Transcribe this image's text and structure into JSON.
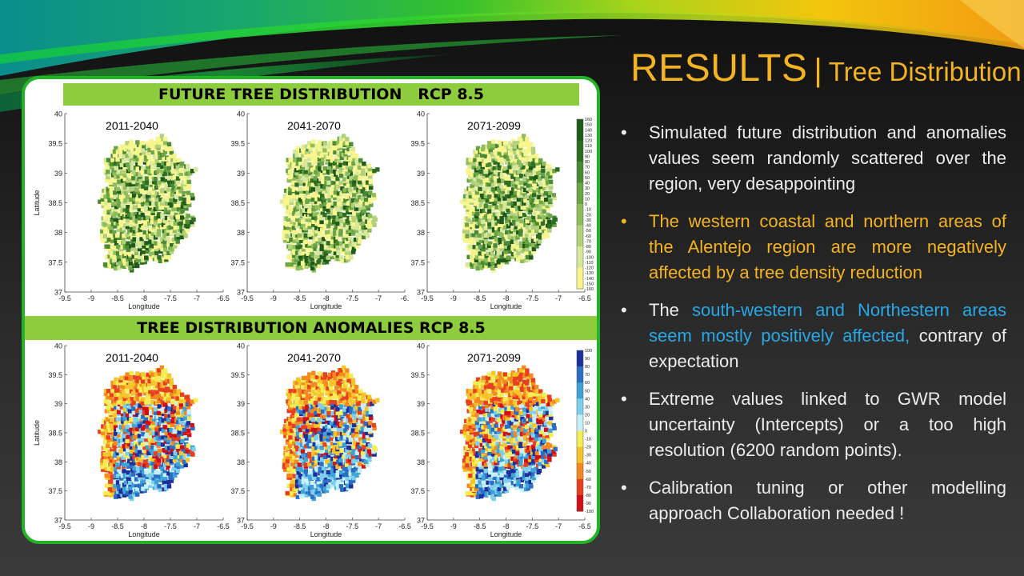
{
  "slide": {
    "title_main": "RESULTS",
    "title_sep": "|",
    "title_sub": "Tree Distribution"
  },
  "bullets": [
    {
      "text": "Simulated future distribution and anomalies values seem randomly scattered over the region, very desappointing"
    },
    {
      "text": "The western coastal and northern areas of the Alentejo region are more negatively affected by a tree density reduction"
    },
    {
      "pre": "The ",
      "highlight": "south-western and Northestern areas seem mostly positively affected,",
      "post": " contrary of expectation"
    },
    {
      "text": "Extreme values linked to GWR model uncertainty (Intercepts) or a too high resolution (6200 random points)."
    },
    {
      "text": "Calibration tuning or other modelling approach Collaboration needed !"
    }
  ],
  "figure": {
    "section1_title": "FUTURE TREE DISTRIBUTION   RCP 8.5",
    "section2_title": "TREE DISTRIBUTION ANOMALIES RCP 8.5",
    "periods": [
      "2011-2040",
      "2041-2070",
      "2071-2099"
    ],
    "xticks": [
      "-9.5",
      "-9",
      "-8.5",
      "-8",
      "-7.5",
      "-7",
      "-6.5"
    ],
    "xticks_cut": [
      "-9.5",
      "-9",
      "-8.5",
      "-8",
      "-7.5",
      "-7",
      "-6."
    ],
    "yticks": [
      "37",
      "37.5",
      "38",
      "38.5",
      "39",
      "39.5",
      "40"
    ],
    "xlabel": "Longitude",
    "ylabel": "Latitude",
    "colorbar1_ticks": [
      "160",
      "150",
      "140",
      "130",
      "120",
      "110",
      "100",
      "90",
      "80",
      "70",
      "60",
      "50",
      "40",
      "30",
      "20",
      "10",
      "0",
      "-10",
      "-20",
      "-30",
      "-40",
      "-50",
      "-60",
      "-70",
      "-80",
      "-90",
      "-100",
      "-110",
      "-120",
      "-130",
      "-140",
      "-150",
      "-160"
    ],
    "colorbar2_ticks": [
      "100",
      "90",
      "80",
      "70",
      "60",
      "50",
      "40",
      "30",
      "20",
      "10",
      "0",
      "-10",
      "-20",
      "-30",
      "-40",
      "-50",
      "-60",
      "-70",
      "-80",
      "-90",
      "-100"
    ],
    "colors": {
      "distribution": [
        "#f7f58c",
        "#d8e89a",
        "#b3d07a",
        "#8fbd5a",
        "#6aa444",
        "#4a8a32",
        "#2f6e22",
        "#1f5a1a"
      ],
      "anomaly": [
        "#1d2f9c",
        "#2b6fc4",
        "#3fa3d6",
        "#7cd0ee",
        "#c6f0f8",
        "#f4ed53",
        "#f6c52a",
        "#f48a1f",
        "#e8401f",
        "#d00f18"
      ],
      "panel_border": "#22b424",
      "band": "#8dcc3c",
      "accent_orange": "#f4b321",
      "accent_blue": "#27a7e6"
    }
  }
}
